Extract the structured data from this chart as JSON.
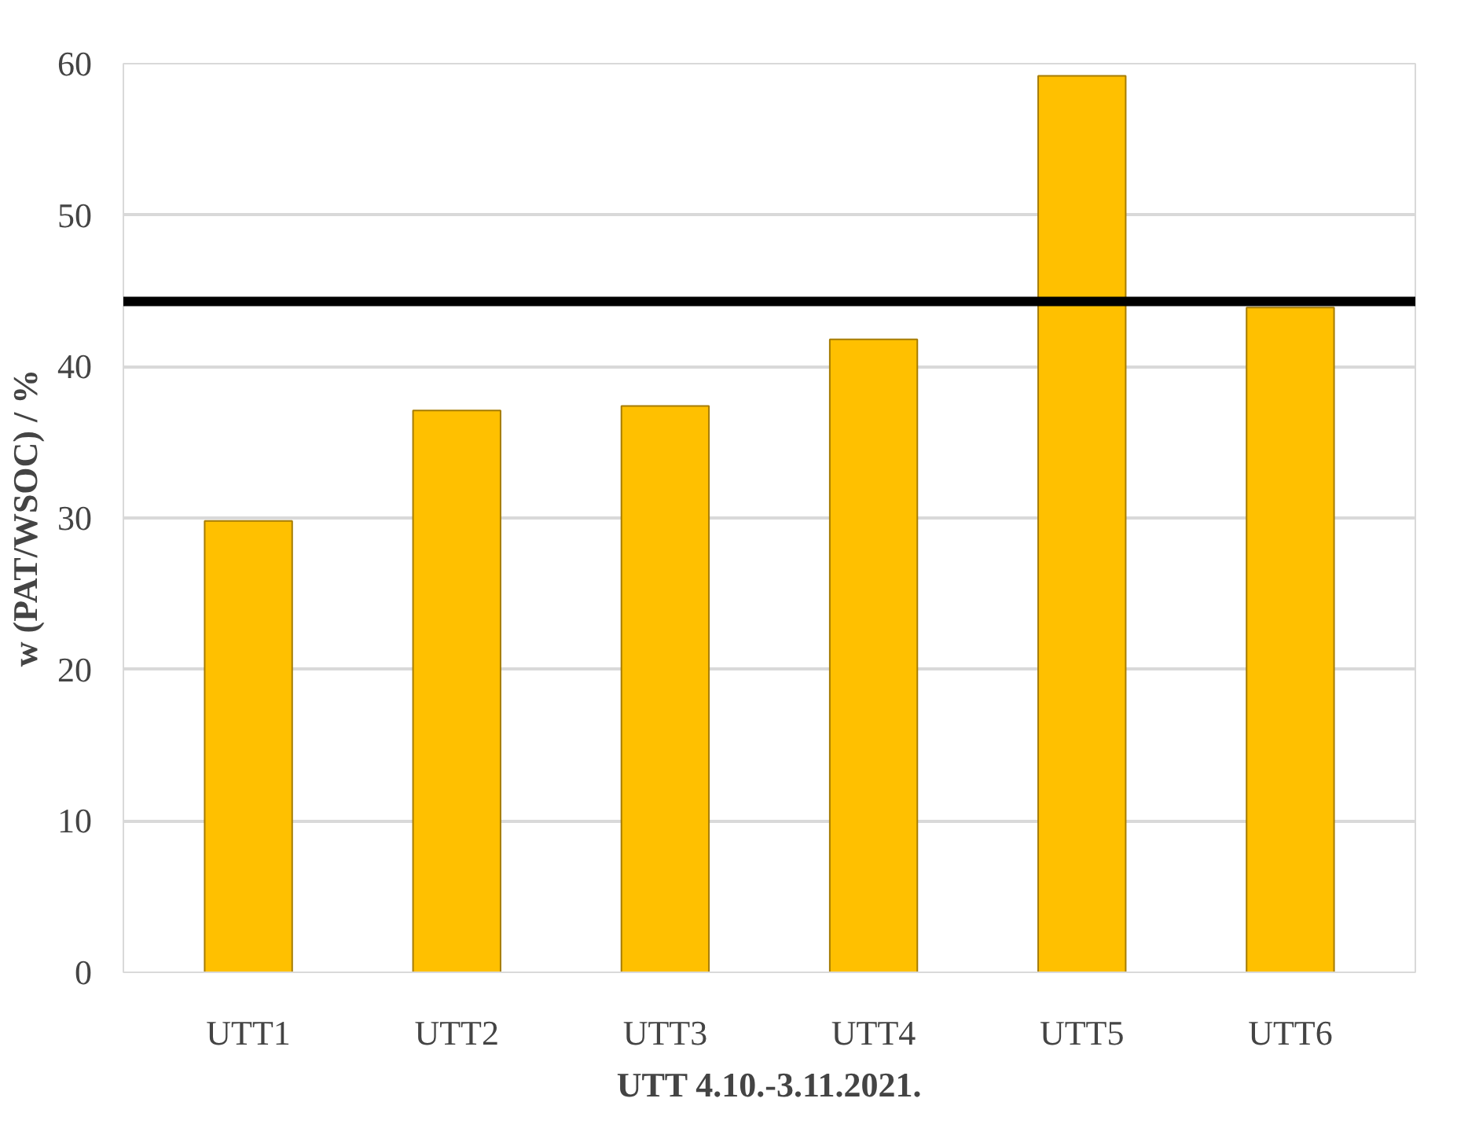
{
  "chart_data": {
    "type": "bar",
    "xlabel": "UTT 4.10.-3.11.2021.",
    "ylabel": "w (PAT/WSOC) / %",
    "categories": [
      "UTT1",
      "UTT2",
      "UTT3",
      "UTT4",
      "UTT5",
      "UTT6"
    ],
    "values": [
      29.8,
      37.1,
      37.4,
      41.8,
      59.2,
      43.9
    ],
    "color": "#ffc000",
    "ylim": [
      0,
      60
    ],
    "yticks": [
      0,
      10,
      20,
      30,
      40,
      50,
      60
    ],
    "grid": "y",
    "ref_lines": [
      {
        "axis": "y",
        "value": 44.3,
        "color": "#000000"
      }
    ]
  }
}
